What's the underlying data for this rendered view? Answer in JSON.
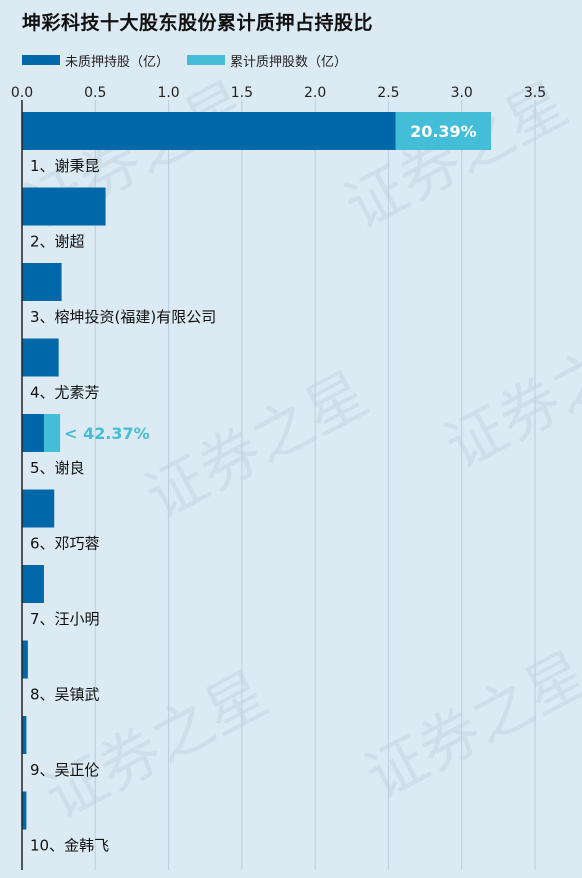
{
  "title": "坤彩科技十大股东股份累计质押占持股比",
  "legend": {
    "unpledged": "未质押持股（亿）",
    "pledged": "累计质押股数（亿）"
  },
  "watermark_text": "证券之星",
  "colors": {
    "unpledged": "#0068a8",
    "pledged": "#44bed8",
    "background": "#dceaf3",
    "grid": "#b9cfdc",
    "axis": "#222222"
  },
  "chart_data": {
    "type": "bar",
    "orientation": "horizontal",
    "stacked": true,
    "xlim": [
      0,
      3.5
    ],
    "xticks": [
      0.0,
      0.5,
      1.0,
      1.5,
      2.0,
      2.5,
      3.0,
      3.5
    ],
    "xtick_labels": [
      "0.0",
      "0.5",
      "1.0",
      "1.5",
      "2.0",
      "2.5",
      "3.0",
      "3.5"
    ],
    "grid": true,
    "legend_position": "top-left",
    "categories": [
      "1、谢秉昆",
      "2、谢超",
      "3、榕坤投资(福建)有限公司",
      "4、尤素芳",
      "5、谢良",
      "6、邓巧蓉",
      "7、汪小明",
      "8、吴镇武",
      "9、吴正伦",
      "10、金韩飞"
    ],
    "series": [
      {
        "name": "未质押持股（亿）",
        "values": [
          2.55,
          0.57,
          0.27,
          0.25,
          0.15,
          0.22,
          0.15,
          0.04,
          0.03,
          0.03
        ]
      },
      {
        "name": "累计质押股数（亿）",
        "values": [
          0.65,
          0,
          0,
          0,
          0.11,
          0,
          0,
          0,
          0,
          0
        ]
      }
    ],
    "annotations": [
      {
        "category_index": 0,
        "text": "20.39%",
        "placement": "inside"
      },
      {
        "category_index": 4,
        "text": "< 42.37%",
        "placement": "outside"
      }
    ]
  }
}
